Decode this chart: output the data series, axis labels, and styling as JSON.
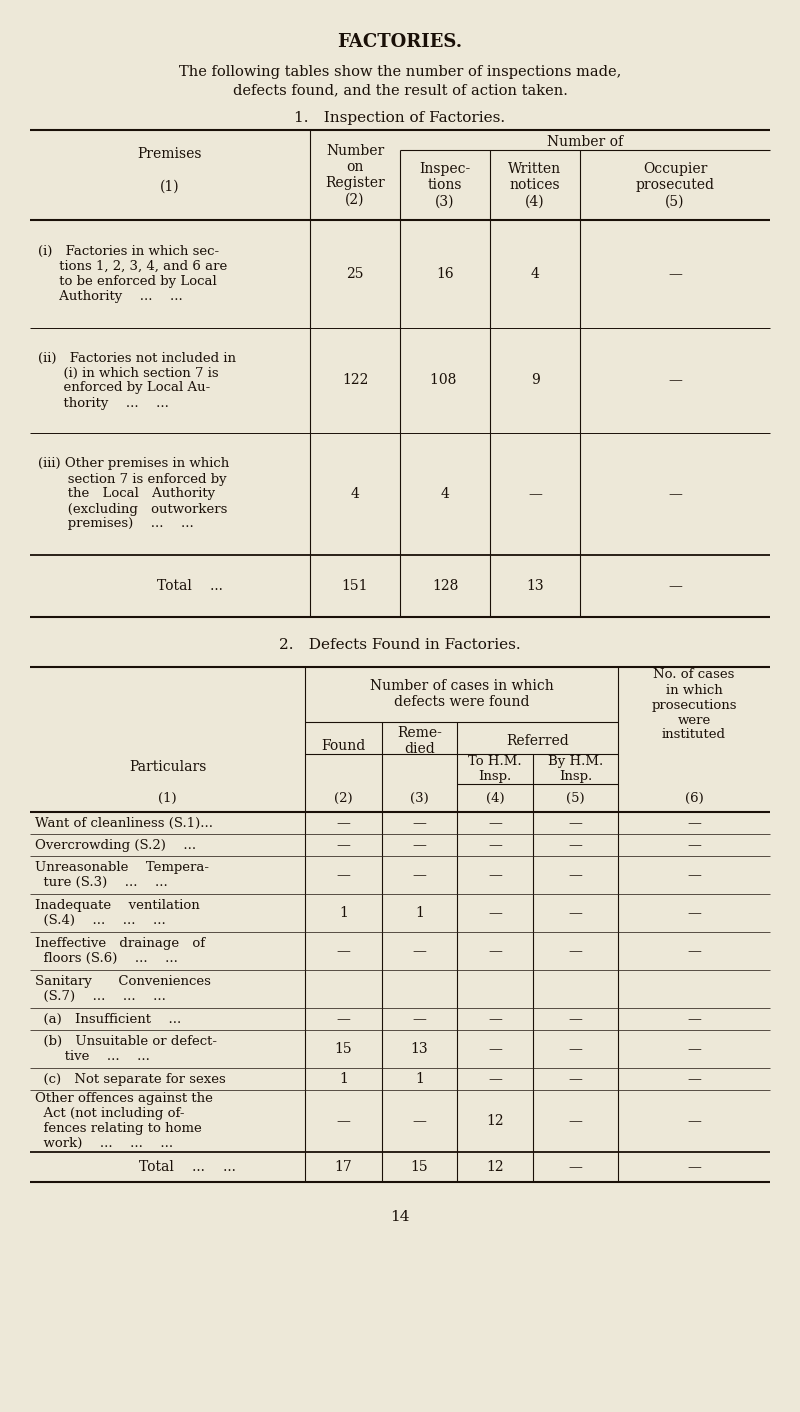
{
  "bg_color": "#ede8d8",
  "text_color": "#1a1008",
  "title": "FACTORIES.",
  "subtitle1": "The following tables show the number of inspections made,",
  "subtitle2": "defects found, and the result of action taken.",
  "table1_title": "1. Inspection of Factories.",
  "table2_title": "2. Defects Found in Factories.",
  "footer": "14",
  "t1_cols": [
    30,
    310,
    400,
    490,
    580,
    770
  ],
  "t2_cols": [
    30,
    305,
    382,
    457,
    533,
    618,
    770
  ],
  "t1_rows": [
    [
      "(i) Factories in which sec-\n     tions 1, 2, 3, 4, and 6 are\n     to be enforced by Local\n     Authority  ...  ...",
      "25",
      "16",
      "4",
      "—"
    ],
    [
      "(ii) Factories not included in\n      (i) in which section 7 is\n      enforced by Local Au-\n      thority  ...  ...",
      "122",
      "108 ",
      "9",
      "—"
    ],
    [
      "(iii) Other premises in which\n       section 7 is enforced by\n       the Local Authority\n       (excluding outworkers\n       premises)  ...  ...",
      "4",
      "4",
      "—",
      "—"
    ],
    [
      "Total  ...",
      "151",
      "128",
      "13",
      "—"
    ]
  ],
  "t1_is_total": [
    false,
    false,
    false,
    true
  ],
  "t2_rows": [
    [
      "Want of cleanliness (S.1)...",
      "—",
      "—",
      "—",
      "—",
      "—"
    ],
    [
      "Overcrowding (S.2)  ...",
      "—",
      "—",
      "—",
      "—",
      "—"
    ],
    [
      "Unreasonable  Tempera-\n  ture (S.3)  ...  ...",
      "—",
      "—",
      "—",
      "—",
      "—"
    ],
    [
      "Inadequate  ventilation\n  (S.4)  ...  ...  ...",
      "1",
      "1",
      "—",
      "—",
      "—"
    ],
    [
      "Ineffective drainage of\n  floors (S.6)  ...  ...",
      "—",
      "—",
      "—",
      "—",
      "—"
    ],
    [
      "Sanitary  Conveniences\n  (S.7)  ...  ...  ...",
      "",
      "",
      "",
      "",
      ""
    ],
    [
      "  (a) Insufficient  ...",
      "—",
      "—",
      "—",
      "—",
      "—"
    ],
    [
      "  (b) Unsuitable or defect-\n       tive  ...  ...",
      "15",
      "13",
      "—",
      "—",
      "—"
    ],
    [
      "  (c) Not separate for sexes",
      "1",
      "1",
      "—",
      "—",
      "—"
    ],
    [
      "Other offences against the\n  Act (not including of-\n  fences relating to home\n  work)  ...  ...  ...",
      "—",
      "—",
      "12",
      "—",
      "—"
    ],
    [
      "Total  ...  ...",
      "17",
      "15",
      "12",
      "—",
      "—"
    ]
  ],
  "t2_is_total": [
    false,
    false,
    false,
    false,
    false,
    false,
    false,
    false,
    false,
    false,
    true
  ]
}
